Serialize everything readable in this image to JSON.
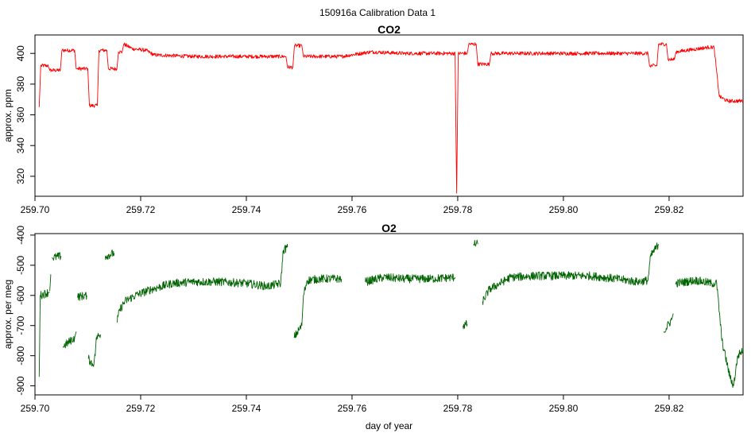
{
  "figure": {
    "title": "150916a   Calibration Data 1",
    "colors": {
      "co2": "#ff0000",
      "o2": "#006400",
      "axis": "#000000",
      "background": "#ffffff"
    }
  },
  "chart_data": [
    {
      "type": "line",
      "title": "CO2",
      "xlabel": "",
      "ylabel": "approx. ppm",
      "xlim": [
        259.7,
        259.834
      ],
      "ylim": [
        307,
        412
      ],
      "x_ticks": [
        259.7,
        259.72,
        259.74,
        259.76,
        259.78,
        259.8,
        259.82
      ],
      "x_tick_labels": [
        "259.70",
        "259.72",
        "259.74",
        "259.76",
        "259.78",
        "259.80",
        "259.82"
      ],
      "y_ticks": [
        320,
        340,
        360,
        380,
        400
      ],
      "y_tick_labels": [
        "320",
        "340",
        "360",
        "380",
        "400"
      ],
      "grid": false,
      "color": "#ff0000",
      "series": [
        {
          "segments": [
            [
              [
                259.7008,
                365
              ],
              [
                259.7011,
                392
              ],
              [
                259.7025,
                392
              ],
              [
                259.7028,
                389
              ],
              [
                259.7048,
                389
              ],
              [
                259.7051,
                402
              ],
              [
                259.7075,
                402
              ],
              [
                259.7078,
                390
              ],
              [
                259.71,
                390
              ],
              [
                259.7103,
                366
              ],
              [
                259.7118,
                366
              ],
              [
                259.7121,
                402
              ],
              [
                259.7136,
                402
              ],
              [
                259.7139,
                390
              ],
              [
                259.7155,
                390
              ],
              [
                259.7158,
                401
              ],
              [
                259.7165,
                401
              ],
              [
                259.7168,
                406
              ],
              [
                259.7185,
                403
              ],
              [
                259.721,
                402
              ],
              [
                259.7225,
                399
              ],
              [
                259.73,
                398
              ],
              [
                259.74,
                398
              ],
              [
                259.7475,
                398
              ],
              [
                259.7478,
                391
              ],
              [
                259.7488,
                391
              ],
              [
                259.7491,
                405
              ],
              [
                259.7505,
                405
              ],
              [
                259.7508,
                398
              ],
              [
                259.758,
                398
              ],
              [
                259.7635,
                401
              ],
              [
                259.77,
                400
              ],
              [
                259.7795,
                400
              ],
              [
                259.7798,
                309
              ],
              [
                259.7801,
                400
              ],
              [
                259.7818,
                400
              ],
              [
                259.7821,
                406
              ],
              [
                259.7835,
                406
              ],
              [
                259.7838,
                393
              ],
              [
                259.786,
                393
              ],
              [
                259.7863,
                400
              ],
              [
                259.795,
                400
              ],
              [
                259.805,
                400
              ],
              [
                259.816,
                400
              ],
              [
                259.8163,
                392
              ],
              [
                259.8177,
                392
              ],
              [
                259.818,
                406
              ],
              [
                259.8195,
                406
              ],
              [
                259.8198,
                396
              ],
              [
                259.821,
                396
              ],
              [
                259.8213,
                401
              ],
              [
                259.8275,
                404
              ],
              [
                259.8285,
                404
              ],
              [
                259.8295,
                372
              ],
              [
                259.831,
                369
              ],
              [
                259.834,
                369
              ]
            ]
          ]
        }
      ]
    },
    {
      "type": "line",
      "title": "O2",
      "xlabel": "day of year",
      "ylabel": "approx. per meg",
      "xlim": [
        259.7,
        259.834
      ],
      "ylim": [
        -930,
        -395
      ],
      "x_ticks": [
        259.7,
        259.72,
        259.74,
        259.76,
        259.78,
        259.8,
        259.82
      ],
      "x_tick_labels": [
        "259.70",
        "259.72",
        "259.74",
        "259.76",
        "259.78",
        "259.80",
        "259.82"
      ],
      "y_ticks": [
        -900,
        -800,
        -700,
        -600,
        -500,
        -400
      ],
      "y_tick_labels": [
        "-900",
        "-800",
        "-700",
        "-600",
        "-500",
        "-400"
      ],
      "grid": false,
      "color": "#006400",
      "series": [
        {
          "segments": [
            [
              [
                259.7008,
                -870
              ],
              [
                259.701,
                -600
              ],
              [
                259.7025,
                -590
              ],
              [
                259.7028,
                -590
              ]
            ],
            [
              [
                259.7028,
                -585
              ],
              [
                259.703,
                -530
              ]
            ],
            [
              [
                259.7032,
                -475
              ],
              [
                259.705,
                -470
              ]
            ],
            [
              [
                259.7053,
                -770
              ],
              [
                259.7075,
                -740
              ],
              [
                259.7078,
                -720
              ]
            ],
            [
              [
                259.708,
                -605
              ],
              [
                259.7098,
                -600
              ]
            ],
            [
              [
                259.7101,
                -810
              ],
              [
                259.711,
                -830
              ],
              [
                259.7114,
                -800
              ],
              [
                259.7116,
                -740
              ],
              [
                259.7124,
                -730
              ]
            ],
            [
              [
                259.7133,
                -470
              ],
              [
                259.715,
                -460
              ]
            ],
            [
              [
                259.7155,
                -690
              ],
              [
                259.716,
                -650
              ],
              [
                259.717,
                -620
              ],
              [
                259.719,
                -600
              ],
              [
                259.722,
                -580
              ],
              [
                259.726,
                -560
              ],
              [
                259.73,
                -555
              ],
              [
                259.735,
                -555
              ],
              [
                259.74,
                -560
              ],
              [
                259.744,
                -570
              ],
              [
                259.7465,
                -560
              ],
              [
                259.747,
                -450
              ],
              [
                259.7478,
                -440
              ]
            ],
            [
              [
                259.749,
                -740
              ],
              [
                259.7505,
                -700
              ],
              [
                259.7508,
                -600
              ],
              [
                259.7515,
                -550
              ],
              [
                259.754,
                -545
              ],
              [
                259.758,
                -545
              ]
            ],
            [
              [
                259.7625,
                -555
              ],
              [
                259.766,
                -540
              ],
              [
                259.77,
                -545
              ],
              [
                259.775,
                -545
              ],
              [
                259.7795,
                -540
              ]
            ],
            [
              [
                259.781,
                -700
              ],
              [
                259.7818,
                -695
              ]
            ],
            [
              [
                259.783,
                -430
              ],
              [
                259.7838,
                -430
              ]
            ],
            [
              [
                259.7847,
                -620
              ],
              [
                259.786,
                -580
              ],
              [
                259.79,
                -540
              ],
              [
                259.795,
                -535
              ],
              [
                259.8,
                -535
              ],
              [
                259.805,
                -535
              ],
              [
                259.81,
                -545
              ],
              [
                259.814,
                -555
              ],
              [
                259.816,
                -550
              ],
              [
                259.8165,
                -470
              ],
              [
                259.818,
                -430
              ]
            ],
            [
              [
                259.819,
                -720
              ],
              [
                259.8205,
                -680
              ],
              [
                259.8208,
                -660
              ]
            ],
            [
              [
                259.8212,
                -560
              ],
              [
                259.825,
                -550
              ],
              [
                259.828,
                -560
              ],
              [
                259.829,
                -560
              ],
              [
                259.83,
                -750
              ],
              [
                259.8315,
                -870
              ],
              [
                259.8322,
                -900
              ],
              [
                259.833,
                -800
              ],
              [
                259.834,
                -780
              ]
            ]
          ]
        }
      ]
    }
  ]
}
